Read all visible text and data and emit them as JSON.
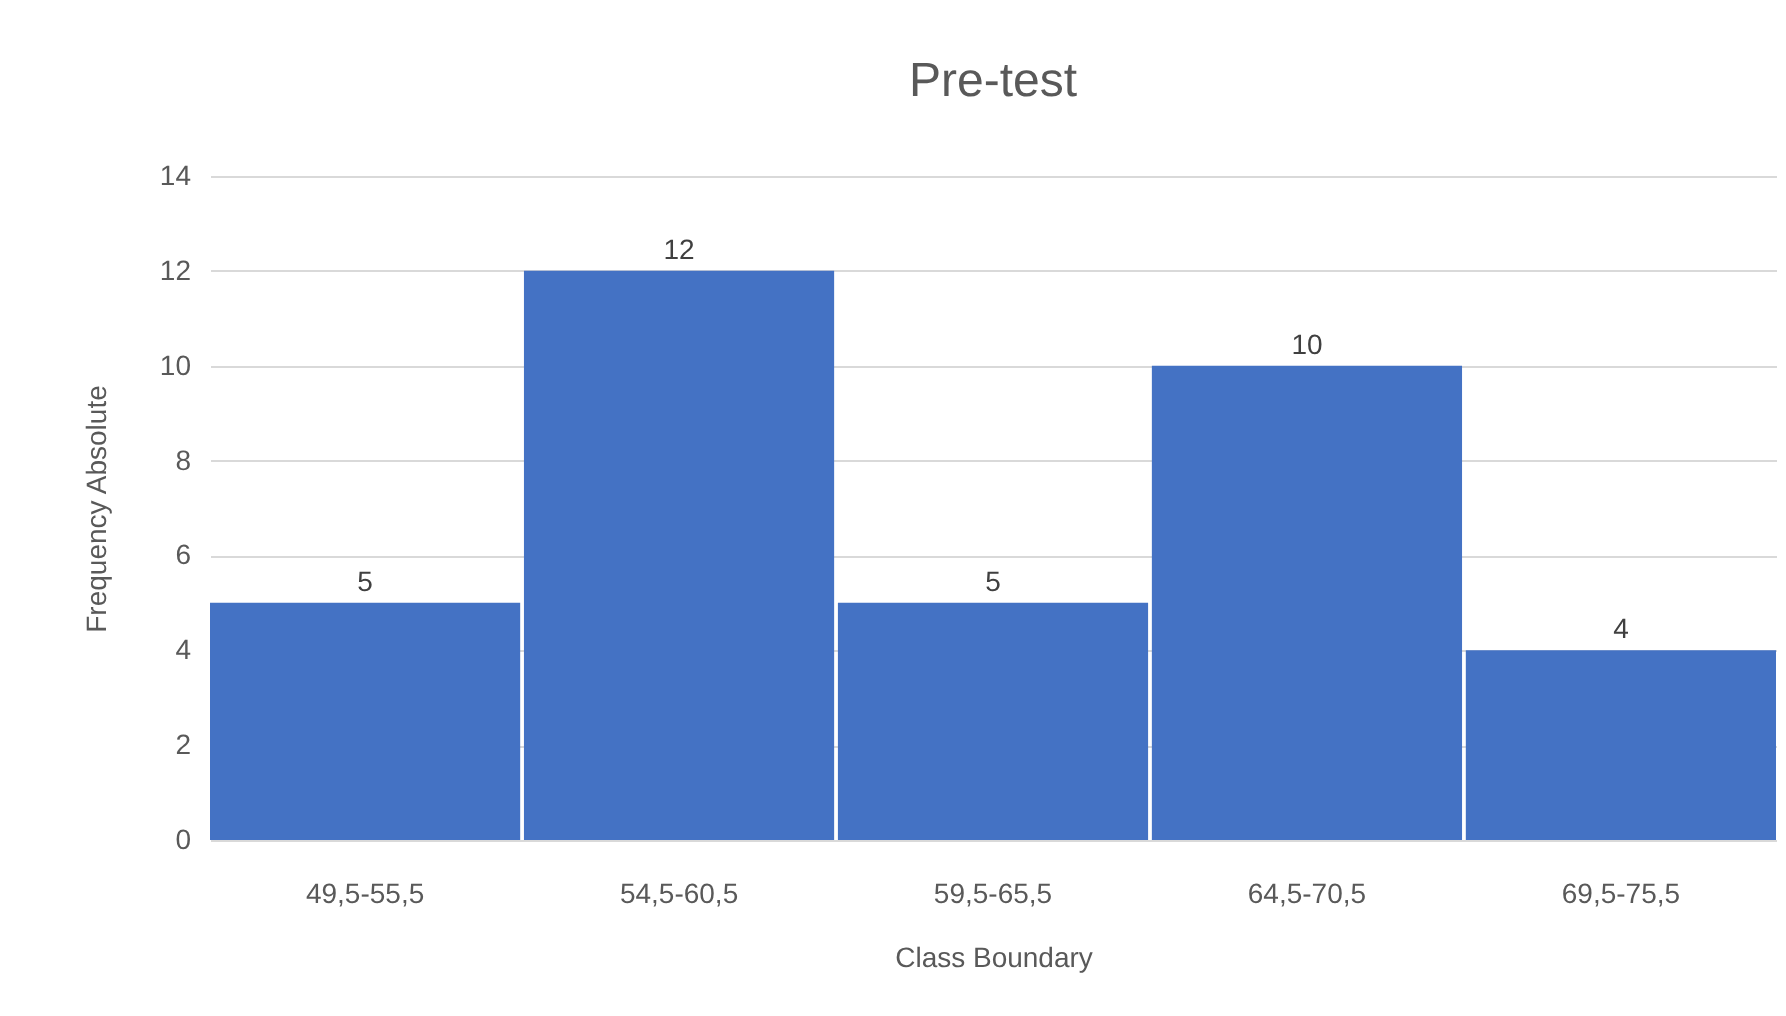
{
  "chart_data": {
    "type": "bar",
    "title": "Pre-test",
    "xlabel": "Class Boundary",
    "ylabel": "Frequency Absolute",
    "categories": [
      "49,5-55,5",
      "54,5-60,5",
      "59,5-65,5",
      "64,5-70,5",
      "69,5-75,5"
    ],
    "values": [
      5,
      12,
      5,
      10,
      4
    ],
    "color": "#4472c4",
    "ylim": [
      0,
      14
    ],
    "yticks": [
      0,
      2,
      4,
      6,
      8,
      10,
      12,
      14
    ],
    "grid": "y",
    "data_labels": true
  }
}
